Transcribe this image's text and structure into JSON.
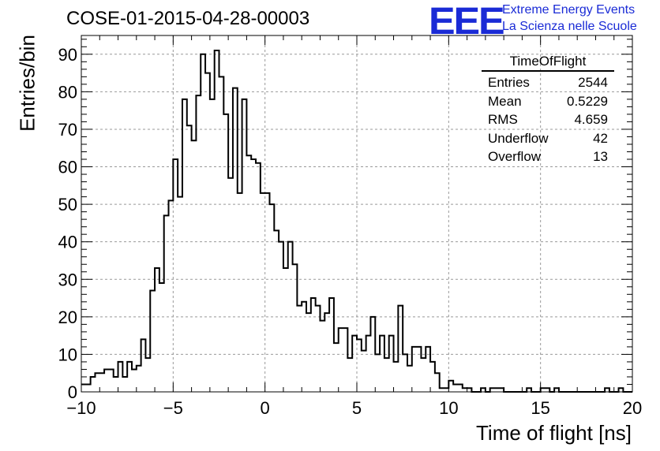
{
  "header": {
    "title": "COSE-01-2015-04-28-00003",
    "logo": "EEE",
    "logo_line1": "Extreme Energy Events",
    "logo_line2": "La Scienza nelle Scuole"
  },
  "stats_box": {
    "name": "TimeOfFlight",
    "rows": [
      {
        "label": "Entries",
        "value": "2544"
      },
      {
        "label": "Mean",
        "value": "0.5229"
      },
      {
        "label": "RMS",
        "value": "4.659"
      },
      {
        "label": "Underflow",
        "value": "42"
      },
      {
        "label": "Overflow",
        "value": "13"
      }
    ]
  },
  "chart_data": {
    "type": "histogram",
    "xlabel": "Time of flight [ns]",
    "ylabel": "Entries/bin",
    "xlim": [
      -10,
      20
    ],
    "ylim": [
      0,
      95
    ],
    "grid": true,
    "xticks": [
      -10,
      -5,
      0,
      5,
      10,
      15,
      20
    ],
    "yticks": [
      0,
      10,
      20,
      30,
      40,
      50,
      60,
      70,
      80,
      90
    ],
    "bin_width": 0.25,
    "bin_start": -10,
    "line_color": "#000000",
    "values": [
      2,
      2,
      4,
      5,
      5,
      6,
      6,
      4,
      8,
      4,
      8,
      6,
      7,
      14,
      9,
      27,
      33,
      29,
      47,
      51,
      62,
      52,
      78,
      71,
      67,
      79,
      90,
      85,
      78,
      91,
      84,
      74,
      57,
      81,
      53,
      78,
      63,
      62,
      61,
      53,
      53,
      50,
      43,
      40,
      33,
      40,
      34,
      23,
      24,
      21,
      25,
      23,
      19,
      21,
      25,
      13,
      17,
      17,
      9,
      15,
      14,
      11,
      15,
      20,
      10,
      15,
      9,
      15,
      8,
      23,
      10,
      7,
      12,
      12,
      9,
      12,
      8,
      5,
      1,
      1,
      3,
      2,
      2,
      1,
      1,
      0,
      0,
      1,
      0,
      1,
      1,
      1,
      0,
      0,
      0,
      0,
      0,
      1,
      0,
      0,
      1,
      1,
      0,
      1,
      0,
      0,
      0,
      0,
      0,
      0,
      0,
      0,
      0,
      0,
      1,
      0,
      0,
      1,
      0,
      0
    ]
  }
}
